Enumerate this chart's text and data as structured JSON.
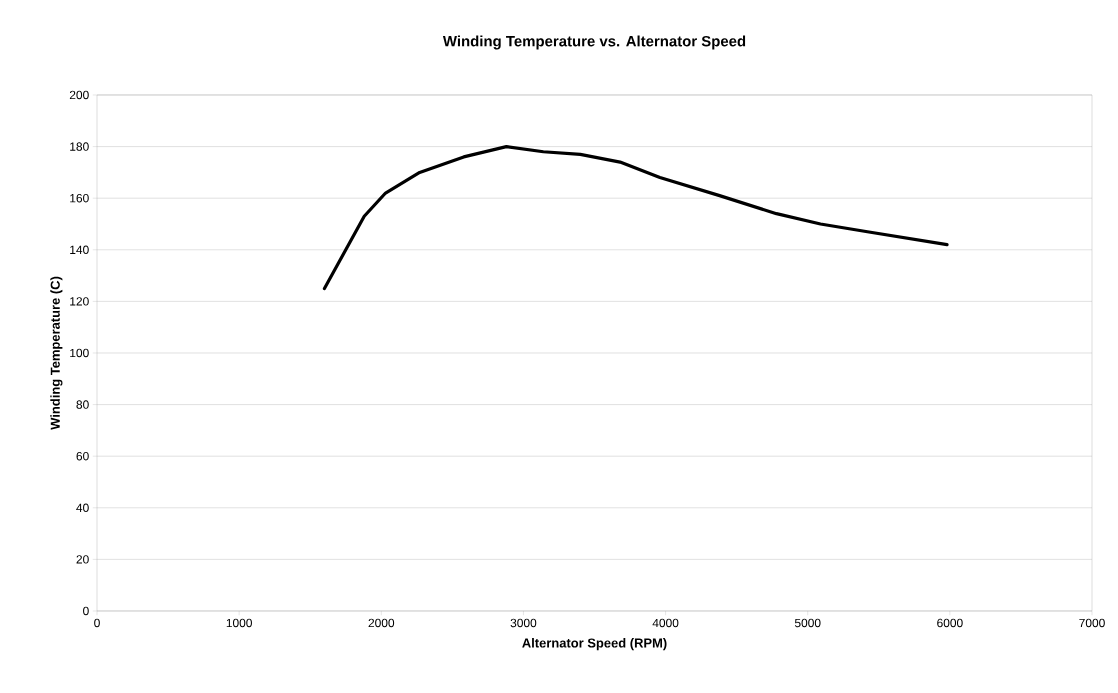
{
  "chart_data": {
    "type": "line",
    "title": "Winding Temperature vs. Alternator Speed",
    "xlabel": "Alternator Speed (RPM)",
    "ylabel": "Winding Temperature (C)",
    "x": [
      1600,
      1880,
      2030,
      2270,
      2580,
      2880,
      3140,
      3400,
      3680,
      3960,
      4380,
      4780,
      5090,
      5420,
      5980
    ],
    "series": [
      {
        "color": "#000000",
        "values": [
          125,
          153,
          162,
          170,
          176,
          180,
          178,
          177,
          174,
          168,
          161,
          154,
          150,
          147,
          142
        ]
      }
    ],
    "xlim": [
      0,
      7000
    ],
    "xticks": [
      0,
      1000,
      2000,
      3000,
      4000,
      5000,
      6000,
      7000
    ],
    "ylim": [
      0,
      200
    ],
    "yticks": [
      0,
      20,
      40,
      60,
      80,
      100,
      120,
      140,
      160,
      180,
      200
    ],
    "grid": "y",
    "marker": "none",
    "line_style": "solid"
  }
}
